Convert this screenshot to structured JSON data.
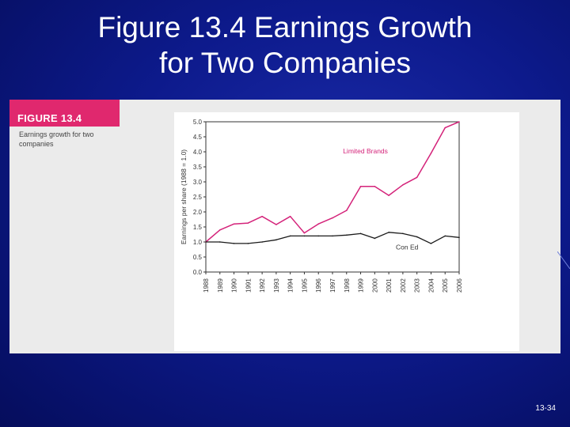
{
  "slide": {
    "title_line1": "Figure 13.4 Earnings Growth",
    "title_line2": "for Two Companies",
    "slide_number": "13-34"
  },
  "figure": {
    "tag": "FIGURE 13.4",
    "caption": "Earnings growth for two companies"
  },
  "colors": {
    "background": "#0d1a8c",
    "tag_bg": "#e0286e",
    "limited_brands": "#d4237a",
    "con_ed": "#1a1a1a"
  },
  "chart_data": {
    "type": "line",
    "title": "",
    "xlabel": "",
    "ylabel": "Earnings per share (1988 = 1.0)",
    "x": [
      "1988",
      "1989",
      "1990",
      "1991",
      "1992",
      "1993",
      "1994",
      "1995",
      "1996",
      "1997",
      "1998",
      "1999",
      "2000",
      "2001",
      "2002",
      "2003",
      "2004",
      "2005",
      "2006"
    ],
    "ylim": [
      0,
      5.0
    ],
    "yticks": [
      "0.0",
      "0.5",
      "1.0",
      "1.5",
      "2.0",
      "2.5",
      "3.0",
      "3.5",
      "4.0",
      "4.5",
      "5.0"
    ],
    "grid": false,
    "series": [
      {
        "name": "Limited Brands",
        "values": [
          1.0,
          1.4,
          1.6,
          1.63,
          1.85,
          1.58,
          1.85,
          1.3,
          1.6,
          1.8,
          2.05,
          2.85,
          2.85,
          2.55,
          2.9,
          3.15,
          3.95,
          4.8,
          5.0
        ]
      },
      {
        "name": "Con Ed",
        "values": [
          1.0,
          1.0,
          0.95,
          0.95,
          1.0,
          1.07,
          1.2,
          1.2,
          1.2,
          1.2,
          1.23,
          1.28,
          1.12,
          1.32,
          1.28,
          1.17,
          0.95,
          1.2,
          1.15
        ]
      }
    ]
  }
}
